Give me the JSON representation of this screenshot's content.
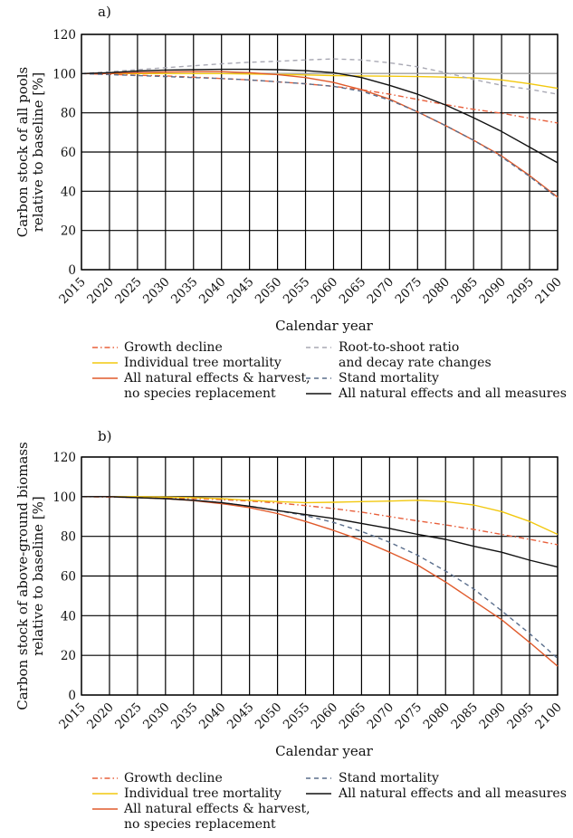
{
  "chart_data": [
    {
      "panel_label": "a)",
      "type": "line",
      "xlabel": "Calendar year",
      "ylabel": [
        "Carbon stock of all pools",
        "relative to baseline [%]"
      ],
      "x": [
        2015,
        2020,
        2025,
        2030,
        2035,
        2040,
        2045,
        2050,
        2055,
        2060,
        2065,
        2070,
        2075,
        2080,
        2085,
        2090,
        2095,
        2100
      ],
      "x_tick_labels": [
        "2015",
        "2020",
        "2025",
        "2030",
        "2035",
        "2040",
        "2045",
        "2050",
        "2055",
        "2060",
        "2065",
        "2070",
        "2075",
        "2080",
        "2085",
        "2090",
        "2095",
        "2100"
      ],
      "xlim": [
        2015,
        2100
      ],
      "ylim": [
        0,
        120
      ],
      "y_ticks": [
        0,
        20,
        40,
        60,
        80,
        100,
        120
      ],
      "grid": true,
      "reference_line": 100,
      "series": [
        {
          "name": "Growth decline",
          "color": "#E8603C",
          "dash": "dashdot",
          "values": [
            100,
            99.6,
            99.2,
            98.8,
            98.2,
            97.5,
            96.8,
            95.8,
            94.8,
            93.5,
            91.8,
            89.5,
            86.8,
            84.2,
            81.8,
            79.8,
            77.2,
            74.8
          ]
        },
        {
          "name": "Individual tree mortality",
          "color": "#F2C80F",
          "dash": "solid",
          "values": [
            100,
            100,
            100,
            100,
            100,
            100,
            99.8,
            99.6,
            99.3,
            99,
            98.8,
            98.7,
            98.5,
            98.2,
            97.8,
            96.8,
            94.8,
            92.5
          ]
        },
        {
          "name": "All natural effects & harvest, no species replacement",
          "color": "#E05A2B",
          "dash": "solid",
          "values": [
            100,
            100,
            100.5,
            100.8,
            101,
            101,
            100.5,
            99.5,
            98,
            95.5,
            91.8,
            87,
            80.5,
            73.5,
            66,
            58,
            48,
            37
          ]
        },
        {
          "name": "Root-to-shoot ratio and decay rate changes",
          "color": "#A9A9B4",
          "dash": "dashed",
          "values": [
            100,
            101,
            102,
            103,
            104,
            105,
            105.8,
            106.3,
            107,
            107.5,
            107,
            105.5,
            103.5,
            100.5,
            97,
            94,
            92,
            89.5
          ]
        },
        {
          "name": "Stand mortality",
          "color": "#5A6E8C",
          "dash": "dashed",
          "values": [
            100,
            99.5,
            99,
            98.5,
            98,
            97.5,
            96.8,
            95.8,
            94.8,
            93.5,
            91,
            86.5,
            80.5,
            73.5,
            66,
            57.5,
            47.5,
            36.5
          ]
        },
        {
          "name": "All natural effects and all measures",
          "color": "#111111",
          "dash": "solid",
          "values": [
            100,
            100.5,
            101.3,
            101.8,
            102,
            102.2,
            102.2,
            102,
            101.5,
            100.5,
            98,
            94,
            89.5,
            84,
            77.5,
            70.5,
            62.5,
            54.5
          ]
        }
      ],
      "legend": [
        {
          "label": "Growth decline"
        },
        {
          "label": "Individual tree mortality"
        },
        {
          "label": [
            "All natural effects & harvest,",
            "no species replacement"
          ]
        },
        {
          "label": [
            "Root-to-shoot ratio",
            "and decay rate changes"
          ]
        },
        {
          "label": "Stand mortality"
        },
        {
          "label": "All natural effects and all measures"
        }
      ]
    },
    {
      "panel_label": "b)",
      "type": "line",
      "xlabel": "Calendar year",
      "ylabel": [
        "Carbon stock of above-ground biomass",
        "relative to baseline [%]"
      ],
      "x": [
        2015,
        2020,
        2025,
        2030,
        2035,
        2040,
        2045,
        2050,
        2055,
        2060,
        2065,
        2070,
        2075,
        2080,
        2085,
        2090,
        2095,
        2100
      ],
      "x_tick_labels": [
        "2015",
        "2020",
        "2025",
        "2030",
        "2035",
        "2040",
        "2045",
        "2050",
        "2055",
        "2060",
        "2065",
        "2070",
        "2075",
        "2080",
        "2085",
        "2090",
        "2095",
        "2100"
      ],
      "xlim": [
        2015,
        2100
      ],
      "ylim": [
        0,
        120
      ],
      "y_ticks": [
        0,
        20,
        40,
        60,
        80,
        100,
        120
      ],
      "grid": true,
      "series": [
        {
          "name": "Growth decline",
          "color": "#E8603C",
          "dash": "dashdot",
          "values": [
            100,
            99.8,
            99.6,
            99.3,
            99,
            98.5,
            97.8,
            96.8,
            95.5,
            94,
            92.2,
            90,
            87.8,
            85.8,
            83.5,
            81,
            78.5,
            75.8
          ]
        },
        {
          "name": "Individual tree mortality",
          "color": "#F2C80F",
          "dash": "solid",
          "values": [
            100,
            100,
            100,
            99.8,
            99.5,
            99,
            98.2,
            97.5,
            97,
            97.2,
            97.5,
            97.8,
            98.2,
            97.5,
            95.8,
            92.5,
            87.5,
            81
          ]
        },
        {
          "name": "All natural effects & harvest, no species replacement",
          "color": "#E05A2B",
          "dash": "solid",
          "values": [
            100,
            100,
            99.5,
            99,
            98,
            96.5,
            94.5,
            91.5,
            87.5,
            83,
            78,
            72,
            65.5,
            57,
            47.5,
            38,
            26.5,
            14.5
          ]
        },
        {
          "name": "Stand mortality",
          "color": "#5A6E8C",
          "dash": "dashed",
          "values": [
            100,
            100,
            99.5,
            99,
            98.2,
            97,
            95.2,
            93,
            90.5,
            87,
            82.5,
            77,
            70.5,
            62.5,
            53.5,
            42.5,
            31,
            18.5
          ]
        },
        {
          "name": "All natural effects and all measures",
          "color": "#111111",
          "dash": "solid",
          "values": [
            100,
            100,
            99.5,
            99,
            98.2,
            97,
            95.2,
            93,
            91,
            89,
            86.5,
            84,
            81,
            78.5,
            75,
            72,
            68,
            64.5
          ]
        }
      ],
      "legend": [
        {
          "label": "Growth decline"
        },
        {
          "label": "Individual tree mortality"
        },
        {
          "label": [
            "All natural effects & harvest,",
            "no species replacement"
          ]
        },
        {
          "label": "Stand mortality"
        },
        {
          "label": "All natural effects and all measures"
        }
      ]
    }
  ]
}
